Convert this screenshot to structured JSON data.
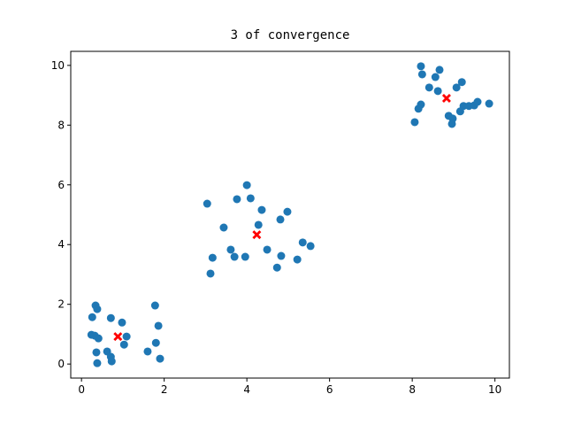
{
  "chart_data": {
    "type": "scatter",
    "title": "3  of convergence",
    "xlim": [
      -0.26,
      10.35
    ],
    "ylim": [
      -0.47,
      10.47
    ],
    "xticks": [
      0,
      2,
      4,
      6,
      8,
      10
    ],
    "yticks": [
      0,
      2,
      4,
      6,
      8,
      10
    ],
    "series": [
      {
        "color": "#1f77b4",
        "marker": "circle",
        "x": [
          0.26,
          0.34,
          0.38,
          0.24,
          0.32,
          0.41,
          0.36,
          0.38,
          0.62,
          0.71,
          0.73,
          0.71,
          0.98,
          1.09,
          1.03,
          1.78,
          1.86,
          1.8,
          1.6,
          1.9,
          3.04,
          4.0,
          3.76,
          4.09,
          4.36,
          4.98,
          4.81,
          4.28,
          3.44,
          3.17,
          3.61,
          3.7,
          3.96,
          4.49,
          4.83,
          4.73,
          5.22,
          5.35,
          5.54,
          3.12,
          8.21,
          8.24,
          8.66,
          8.56,
          8.41,
          8.62,
          9.2,
          9.07,
          8.21,
          8.15,
          8.06,
          8.88,
          8.98,
          8.96,
          9.16,
          9.24,
          9.37,
          9.5,
          9.58,
          9.86
        ],
        "values": [
          1.57,
          1.96,
          1.84,
          0.98,
          0.95,
          0.86,
          0.39,
          0.03,
          0.42,
          0.24,
          0.09,
          1.54,
          1.39,
          0.92,
          0.65,
          1.96,
          1.28,
          0.71,
          0.42,
          0.18,
          5.37,
          5.99,
          5.52,
          5.55,
          5.16,
          5.1,
          4.84,
          4.66,
          4.57,
          3.56,
          3.83,
          3.59,
          3.59,
          3.83,
          3.62,
          3.23,
          3.5,
          4.07,
          3.95,
          3.03,
          9.97,
          9.7,
          9.85,
          9.61,
          9.26,
          9.14,
          9.44,
          9.26,
          8.69,
          8.55,
          8.1,
          8.31,
          8.22,
          8.04,
          8.46,
          8.64,
          8.64,
          8.66,
          8.78,
          8.72
        ]
      },
      {
        "color": "#ff0000",
        "marker": "X",
        "x": [
          0.88,
          4.24,
          8.83
        ],
        "values": [
          0.92,
          4.33,
          8.9
        ]
      }
    ]
  }
}
